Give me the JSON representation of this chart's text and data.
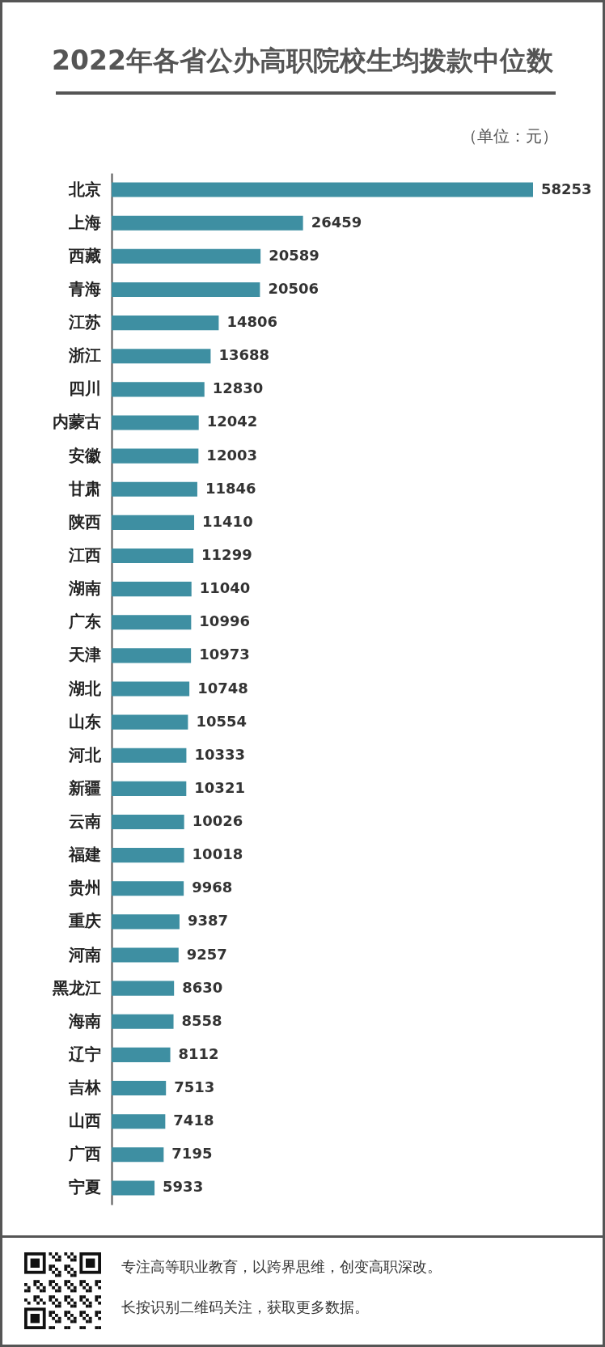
{
  "chart_data": {
    "type": "bar",
    "orientation": "horizontal",
    "title": "2022年各省公办高职院校生均拨款中位数",
    "subtitle": "（单位：元）",
    "categories": [
      "北京",
      "上海",
      "西藏",
      "青海",
      "江苏",
      "浙江",
      "四川",
      "内蒙古",
      "安徽",
      "甘肃",
      "陕西",
      "江西",
      "湖南",
      "广东",
      "天津",
      "湖北",
      "山东",
      "河北",
      "新疆",
      "云南",
      "福建",
      "贵州",
      "重庆",
      "河南",
      "黑龙江",
      "海南",
      "辽宁",
      "吉林",
      "山西",
      "广西",
      "宁夏"
    ],
    "values": [
      58253,
      26459,
      20589,
      20506,
      14806,
      13688,
      12830,
      12042,
      12003,
      11846,
      11410,
      11299,
      11040,
      10996,
      10973,
      10748,
      10554,
      10333,
      10321,
      10026,
      10018,
      9968,
      9387,
      9257,
      8630,
      8558,
      8112,
      7513,
      7418,
      7195,
      5933
    ],
    "color": "#3e8fa2",
    "data_labels": true,
    "annotations": [
      "专注高等职业教育，以跨界思维，创变高职深改。",
      "长按识别二维码关注，获取更多数据。"
    ]
  }
}
